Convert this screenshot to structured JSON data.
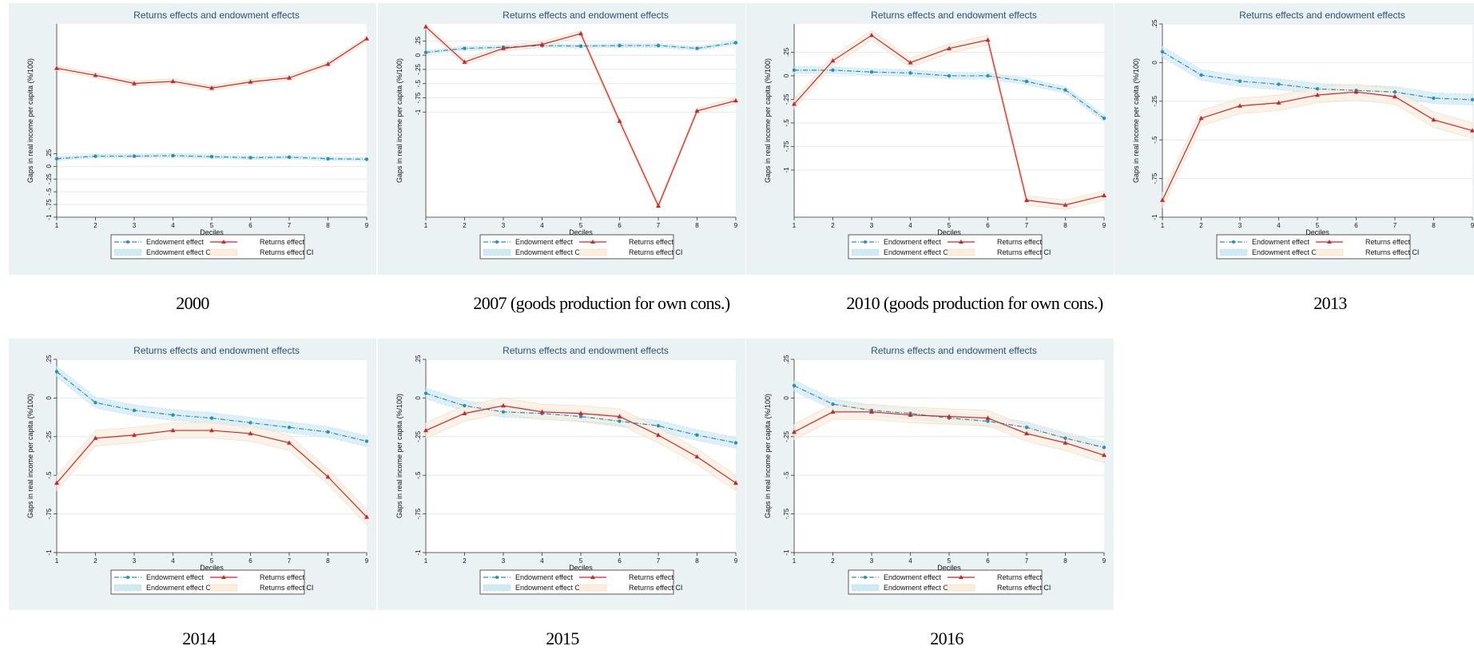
{
  "chart_data": [
    {
      "type": "line",
      "panel_caption": "2000",
      "title": "Returns effects and endowment effects",
      "xlabel": "Deciles",
      "ylabel": "Gaps in real income per capita (%/100)",
      "x": [
        1,
        2,
        3,
        4,
        5,
        6,
        7,
        8,
        9
      ],
      "yticks": [
        {
          "v": 0.25,
          "t": ".25"
        },
        {
          "v": 0,
          "t": "0"
        },
        {
          "v": -0.25,
          "t": "-.25"
        },
        {
          "v": -0.5,
          "t": "-.5"
        },
        {
          "v": -0.75,
          "t": "-.75"
        },
        {
          "v": -1,
          "t": "-1"
        }
      ],
      "ylim": [
        -1,
        2.8
      ],
      "grid": true,
      "legend_position": "bottom",
      "series": [
        {
          "name": "Endowment effect",
          "color": "#2a8fb8",
          "marker": "dot",
          "dashed": true,
          "values": [
            0.15,
            0.2,
            0.2,
            0.21,
            0.19,
            0.17,
            0.18,
            0.15,
            0.14
          ]
        },
        {
          "name": "Returns effect",
          "color": "#d1232b",
          "marker": "triangle",
          "dashed": false,
          "values": [
            1.93,
            1.79,
            1.63,
            1.67,
            1.54,
            1.66,
            1.74,
            2.01,
            2.51
          ]
        }
      ],
      "legend": [
        "Endowment effect",
        "Returns effect",
        "Endowment effect CI",
        "Returns effect CI"
      ]
    },
    {
      "type": "line",
      "panel_caption": "2007 (goods production for own cons.)",
      "title": "Returns effects and endowment effects",
      "xlabel": "Deciles",
      "ylabel": "Gaps in real income per capita (%/100)",
      "x": [
        1,
        2,
        3,
        4,
        5,
        6,
        7,
        8,
        9
      ],
      "yticks": [
        {
          "v": 0.25,
          "t": ".25"
        },
        {
          "v": 0,
          "t": "0"
        },
        {
          "v": -0.25,
          "t": "-.25"
        },
        {
          "v": -0.5,
          "t": "-.5"
        },
        {
          "v": -0.75,
          "t": "-.75"
        },
        {
          "v": -1,
          "t": "-1"
        }
      ],
      "ylim": [
        -2.85,
        0.55
      ],
      "grid": true,
      "legend_position": "bottom",
      "series": [
        {
          "name": "Endowment effect",
          "color": "#2a8fb8",
          "marker": "dot",
          "dashed": true,
          "values": [
            0.05,
            0.12,
            0.14,
            0.17,
            0.16,
            0.17,
            0.17,
            0.12,
            0.22
          ]
        },
        {
          "name": "Returns effect",
          "color": "#d1232b",
          "marker": "triangle",
          "dashed": false,
          "values": [
            0.5,
            -0.12,
            0.12,
            0.19,
            0.38,
            -1.16,
            -2.65,
            -0.98,
            -0.8
          ]
        }
      ],
      "legend": [
        "Endowment effect",
        "Returns effect",
        "Endowment effect CI",
        "Returns effect CI"
      ]
    },
    {
      "type": "line",
      "panel_caption": "2010 (goods production for own cons.)",
      "title": "Returns effects and endowment effects",
      "xlabel": "Deciles",
      "ylabel": "Gaps in real income per capita (%/100)",
      "x": [
        1,
        2,
        3,
        4,
        5,
        6,
        7,
        8,
        9
      ],
      "yticks": [
        {
          "v": 0.25,
          "t": ".25"
        },
        {
          "v": 0,
          "t": "0"
        },
        {
          "v": -0.25,
          "t": "-.25"
        },
        {
          "v": -0.5,
          "t": "-.5"
        },
        {
          "v": -0.75,
          "t": "-.75"
        },
        {
          "v": -1,
          "t": "-1"
        }
      ],
      "ylim": [
        -1.5,
        0.55
      ],
      "grid": true,
      "legend_position": "bottom",
      "series": [
        {
          "name": "Endowment effect",
          "color": "#2a8fb8",
          "marker": "dot",
          "dashed": true,
          "values": [
            0.06,
            0.06,
            0.04,
            0.03,
            0.0,
            0.0,
            -0.06,
            -0.15,
            -0.45
          ]
        },
        {
          "name": "Returns effect",
          "color": "#d1232b",
          "marker": "triangle",
          "dashed": false,
          "values": [
            -0.3,
            0.16,
            0.43,
            0.14,
            0.29,
            0.38,
            -1.32,
            -1.37,
            -1.27
          ]
        }
      ],
      "legend": [
        "Endowment effect",
        "Returns effect",
        "Endowment effect CI",
        "Returns effect CI"
      ]
    },
    {
      "type": "line",
      "panel_caption": "2013",
      "title": "Returns effects and endowment effects",
      "xlabel": "Deciles",
      "ylabel": "Gaps in real income per capita (%/100)",
      "x": [
        1,
        2,
        3,
        4,
        5,
        6,
        7,
        8,
        9
      ],
      "yticks": [
        {
          "v": 0.25,
          "t": ".25"
        },
        {
          "v": 0,
          "t": "0"
        },
        {
          "v": -0.25,
          "t": "-.25"
        },
        {
          "v": -0.5,
          "t": "-.5"
        },
        {
          "v": -0.75,
          "t": "-.75"
        },
        {
          "v": -1,
          "t": "-1"
        }
      ],
      "ylim": [
        -1,
        0.25
      ],
      "grid": true,
      "legend_position": "bottom",
      "series": [
        {
          "name": "Endowment effect",
          "color": "#2a8fb8",
          "marker": "dot",
          "dashed": true,
          "values": [
            0.07,
            -0.08,
            -0.12,
            -0.14,
            -0.17,
            -0.18,
            -0.19,
            -0.23,
            -0.24
          ]
        },
        {
          "name": "Returns effect",
          "color": "#d1232b",
          "marker": "triangle",
          "dashed": false,
          "values": [
            -0.89,
            -0.36,
            -0.28,
            -0.26,
            -0.21,
            -0.19,
            -0.22,
            -0.37,
            -0.44
          ]
        }
      ],
      "legend": [
        "Endowment effect",
        "Returns effect",
        "Endowment effect CI",
        "Returns effect CI"
      ]
    },
    {
      "type": "line",
      "panel_caption": "2014",
      "title": "Returns effects and endowment effects",
      "xlabel": "Deciles",
      "ylabel": "Gaps in real income per capita (%/100)",
      "x": [
        1,
        2,
        3,
        4,
        5,
        6,
        7,
        8,
        9
      ],
      "yticks": [
        {
          "v": 0.25,
          "t": ".25"
        },
        {
          "v": 0,
          "t": "0"
        },
        {
          "v": -0.25,
          "t": "-.25"
        },
        {
          "v": -0.5,
          "t": "-.5"
        },
        {
          "v": -0.75,
          "t": "-.75"
        },
        {
          "v": -1,
          "t": "-1"
        }
      ],
      "ylim": [
        -1,
        0.25
      ],
      "grid": true,
      "legend_position": "bottom",
      "series": [
        {
          "name": "Endowment effect",
          "color": "#2a8fb8",
          "marker": "dot",
          "dashed": true,
          "values": [
            0.17,
            -0.03,
            -0.08,
            -0.11,
            -0.13,
            -0.16,
            -0.19,
            -0.22,
            -0.28
          ]
        },
        {
          "name": "Returns effect",
          "color": "#d1232b",
          "marker": "triangle",
          "dashed": false,
          "values": [
            -0.55,
            -0.26,
            -0.24,
            -0.21,
            -0.21,
            -0.23,
            -0.29,
            -0.51,
            -0.77
          ]
        }
      ],
      "legend": [
        "Endowment effect",
        "Returns effect",
        "Endowment effect CI",
        "Returns effect CI"
      ]
    },
    {
      "type": "line",
      "panel_caption": "2015",
      "title": "Returns effects and endowment effects",
      "xlabel": "Deciles",
      "ylabel": "Gaps in real income per capita (%/100)",
      "x": [
        1,
        2,
        3,
        4,
        5,
        6,
        7,
        8,
        9
      ],
      "yticks": [
        {
          "v": 0.25,
          "t": ".25"
        },
        {
          "v": 0,
          "t": "0"
        },
        {
          "v": -0.25,
          "t": "-.25"
        },
        {
          "v": -0.5,
          "t": "-.5"
        },
        {
          "v": -0.75,
          "t": "-.75"
        },
        {
          "v": -1,
          "t": "-1"
        }
      ],
      "ylim": [
        -1,
        0.25
      ],
      "grid": true,
      "legend_position": "bottom",
      "series": [
        {
          "name": "Endowment effect",
          "color": "#2a8fb8",
          "marker": "dot",
          "dashed": true,
          "values": [
            0.03,
            -0.05,
            -0.09,
            -0.1,
            -0.12,
            -0.15,
            -0.18,
            -0.24,
            -0.29
          ]
        },
        {
          "name": "Returns effect",
          "color": "#d1232b",
          "marker": "triangle",
          "dashed": false,
          "values": [
            -0.21,
            -0.1,
            -0.05,
            -0.09,
            -0.1,
            -0.12,
            -0.24,
            -0.38,
            -0.55
          ]
        }
      ],
      "legend": [
        "Endowment effect",
        "Returns effect",
        "Endowment effect CI",
        "Returns effect CI"
      ]
    },
    {
      "type": "line",
      "panel_caption": "2016",
      "title": "Returns effects and endowment effects",
      "xlabel": "Deciles",
      "ylabel": "Gaps in real income per capita (%/100)",
      "x": [
        1,
        2,
        3,
        4,
        5,
        6,
        7,
        8,
        9
      ],
      "yticks": [
        {
          "v": 0.25,
          "t": ".25"
        },
        {
          "v": 0,
          "t": "0"
        },
        {
          "v": -0.25,
          "t": "-.25"
        },
        {
          "v": -0.5,
          "t": "-.5"
        },
        {
          "v": -0.75,
          "t": "-.75"
        },
        {
          "v": -1,
          "t": "-1"
        }
      ],
      "ylim": [
        -1,
        0.25
      ],
      "grid": true,
      "legend_position": "bottom",
      "series": [
        {
          "name": "Endowment effect",
          "color": "#2a8fb8",
          "marker": "dot",
          "dashed": true,
          "values": [
            0.08,
            -0.04,
            -0.08,
            -0.1,
            -0.13,
            -0.15,
            -0.19,
            -0.26,
            -0.32
          ]
        },
        {
          "name": "Returns effect",
          "color": "#d1232b",
          "marker": "triangle",
          "dashed": false,
          "values": [
            -0.22,
            -0.09,
            -0.09,
            -0.11,
            -0.12,
            -0.13,
            -0.23,
            -0.29,
            -0.37
          ]
        }
      ],
      "legend": [
        "Endowment effect",
        "Returns effect",
        "Endowment effect CI",
        "Returns effect CI"
      ]
    }
  ]
}
